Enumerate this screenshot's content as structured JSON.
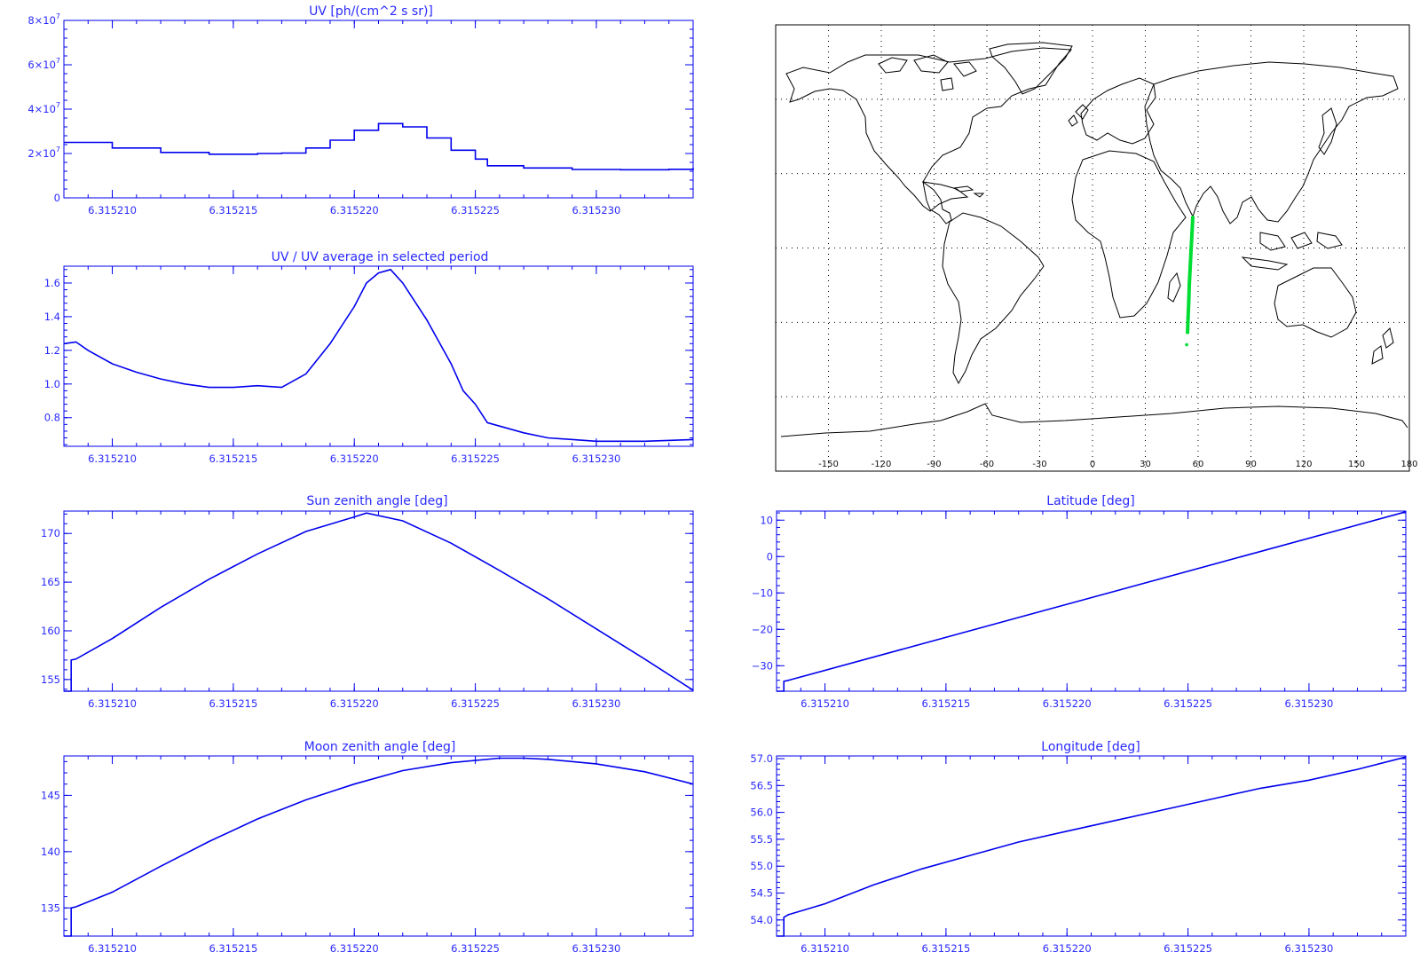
{
  "style": {
    "plot_color": "#0000ee",
    "text_color": "#2a2aff",
    "track_color": "#00dd33",
    "map_color": "#000000"
  },
  "chart_data": [
    {
      "id": "uv",
      "type": "line",
      "title": "UV [ph/(cm^2 s sr)]",
      "xlim": [
        6.315208,
        6.315234
      ],
      "ylim": [
        0,
        80000000
      ],
      "xticks": [
        6.31521,
        6.315215,
        6.31522,
        6.315225,
        6.31523
      ],
      "xtick_labels": [
        "6.315210",
        "6.315215",
        "6.315220",
        "6.315225",
        "6.315230"
      ],
      "yticks": [
        0,
        20000000,
        40000000,
        60000000,
        80000000
      ],
      "ytick_labels": [
        {
          "base": "0",
          "exp": ""
        },
        {
          "base": "2×10",
          "exp": "7"
        },
        {
          "base": "4×10",
          "exp": "7"
        },
        {
          "base": "6×10",
          "exp": "7"
        },
        {
          "base": "8×10",
          "exp": "7"
        }
      ],
      "step": true,
      "series": [
        {
          "x": [
            6.315208,
            6.31521,
            6.315212,
            6.315214,
            6.315216,
            6.315217,
            6.315218,
            6.315219,
            6.31522,
            6.315221,
            6.315222,
            6.315223,
            6.315224,
            6.315225,
            6.3152255,
            6.315227,
            6.315229,
            6.315231,
            6.315233,
            6.315234
          ],
          "y": [
            25000000,
            22500000,
            20500000,
            19700000,
            20000000,
            20200000,
            22500000,
            26000000,
            30500000,
            33500000,
            32000000,
            27000000,
            21500000,
            17500000,
            14500000,
            13500000,
            12800000,
            12700000,
            12900000,
            13500000
          ]
        }
      ]
    },
    {
      "id": "uv-ratio",
      "type": "line",
      "title": "UV / UV average in selected period",
      "xlim": [
        6.315208,
        6.315234
      ],
      "ylim": [
        0.63,
        1.7
      ],
      "xticks": [
        6.31521,
        6.315215,
        6.31522,
        6.315225,
        6.31523
      ],
      "xtick_labels": [
        "6.315210",
        "6.315215",
        "6.315220",
        "6.315225",
        "6.315230"
      ],
      "yticks": [
        0.8,
        1.0,
        1.2,
        1.4,
        1.6
      ],
      "ytick_labels": [
        "0.8",
        "1.0",
        "1.2",
        "1.4",
        "1.6"
      ],
      "series": [
        {
          "x": [
            6.315208,
            6.3152085,
            6.315209,
            6.31521,
            6.315211,
            6.315212,
            6.315213,
            6.315214,
            6.315215,
            6.315216,
            6.315217,
            6.315218,
            6.315219,
            6.31522,
            6.3152205,
            6.315221,
            6.3152215,
            6.315222,
            6.315223,
            6.315224,
            6.3152245,
            6.315225,
            6.3152255,
            6.315226,
            6.315227,
            6.315228,
            6.31523,
            6.315232,
            6.315234
          ],
          "y": [
            1.24,
            1.25,
            1.2,
            1.12,
            1.07,
            1.03,
            1.0,
            0.98,
            0.98,
            0.99,
            0.98,
            1.06,
            1.24,
            1.46,
            1.6,
            1.66,
            1.68,
            1.6,
            1.38,
            1.12,
            0.96,
            0.88,
            0.77,
            0.75,
            0.71,
            0.68,
            0.66,
            0.66,
            0.67
          ]
        }
      ]
    },
    {
      "id": "sun-zenith",
      "type": "line",
      "title": "Sun zenith angle [deg]",
      "xlim": [
        6.315208,
        6.315234
      ],
      "ylim": [
        153.8,
        172.3
      ],
      "xticks": [
        6.31521,
        6.315215,
        6.31522,
        6.315225,
        6.31523
      ],
      "xtick_labels": [
        "6.315210",
        "6.315215",
        "6.315220",
        "6.315225",
        "6.315230"
      ],
      "yticks": [
        155,
        160,
        165,
        170
      ],
      "ytick_labels": [
        "155",
        "160",
        "165",
        "170"
      ],
      "series": [
        {
          "x": [
            6.315208,
            6.3152083,
            6.3152083,
            6.3152085,
            6.31521,
            6.315212,
            6.315214,
            6.315216,
            6.315218,
            6.31522,
            6.3152205,
            6.315222,
            6.315224,
            6.315226,
            6.315228,
            6.31523,
            6.315232,
            6.315234
          ],
          "y": [
            153.8,
            153.8,
            157.0,
            157.1,
            159.2,
            162.4,
            165.3,
            167.9,
            170.2,
            171.7,
            172.1,
            171.3,
            169.0,
            166.2,
            163.3,
            160.2,
            157.1,
            153.9
          ]
        }
      ]
    },
    {
      "id": "latitude",
      "type": "line",
      "title": "Latitude [deg]",
      "xlim": [
        6.315208,
        6.315234
      ],
      "ylim": [
        -37,
        12.5
      ],
      "xticks": [
        6.31521,
        6.315215,
        6.31522,
        6.315225,
        6.31523
      ],
      "xtick_labels": [
        "6.315210",
        "6.315215",
        "6.315220",
        "6.315225",
        "6.315230"
      ],
      "yticks": [
        -30,
        -20,
        -10,
        0,
        10
      ],
      "ytick_labels": [
        "−30",
        "−20",
        "−10",
        "0",
        "10"
      ],
      "series": [
        {
          "x": [
            6.315208,
            6.3152083,
            6.3152083,
            6.3152085,
            6.315234
          ],
          "y": [
            -37,
            -37,
            -34.3,
            -34.0,
            12.3
          ]
        }
      ]
    },
    {
      "id": "moon-zenith",
      "type": "line",
      "title": "Moon zenith angle [deg]",
      "xlim": [
        6.315208,
        6.315234
      ],
      "ylim": [
        132.5,
        148.5
      ],
      "xticks": [
        6.31521,
        6.315215,
        6.31522,
        6.315225,
        6.31523
      ],
      "xtick_labels": [
        "6.315210",
        "6.315215",
        "6.315220",
        "6.315225",
        "6.315230"
      ],
      "yticks": [
        135,
        140,
        145
      ],
      "ytick_labels": [
        "135",
        "140",
        "145"
      ],
      "series": [
        {
          "x": [
            6.315208,
            6.3152083,
            6.3152083,
            6.3152085,
            6.31521,
            6.315212,
            6.315214,
            6.315216,
            6.315218,
            6.31522,
            6.315222,
            6.315224,
            6.315226,
            6.315227,
            6.315228,
            6.31523,
            6.315232,
            6.315234
          ],
          "y": [
            132.5,
            132.5,
            135.0,
            135.1,
            136.4,
            138.7,
            140.9,
            142.9,
            144.6,
            146.0,
            147.2,
            147.9,
            148.3,
            148.3,
            148.2,
            147.8,
            147.1,
            146.0
          ]
        }
      ]
    },
    {
      "id": "longitude",
      "type": "line",
      "title": "Longitude [deg]",
      "xlim": [
        6.315208,
        6.315234
      ],
      "ylim": [
        53.7,
        57.05
      ],
      "xticks": [
        6.31521,
        6.315215,
        6.31522,
        6.315225,
        6.31523
      ],
      "xtick_labels": [
        "6.315210",
        "6.315215",
        "6.315220",
        "6.315225",
        "6.315230"
      ],
      "yticks": [
        54.0,
        54.5,
        55.0,
        55.5,
        56.0,
        56.5,
        57.0
      ],
      "ytick_labels": [
        "54.0",
        "54.5",
        "55.0",
        "55.5",
        "56.0",
        "56.5",
        "57.0"
      ],
      "series": [
        {
          "x": [
            6.315208,
            6.3152083,
            6.3152083,
            6.3152085,
            6.31521,
            6.315212,
            6.315214,
            6.315216,
            6.315218,
            6.31522,
            6.315222,
            6.315224,
            6.315226,
            6.315228,
            6.31523,
            6.315232,
            6.315234
          ],
          "y": [
            53.7,
            53.7,
            54.05,
            54.1,
            54.3,
            54.65,
            54.95,
            55.2,
            55.45,
            55.65,
            55.85,
            56.05,
            56.25,
            56.45,
            56.6,
            56.8,
            57.03
          ]
        }
      ]
    },
    {
      "id": "world-map",
      "type": "scatter",
      "title": "",
      "xlim": [
        -180,
        180
      ],
      "ylim": [
        -90,
        90
      ],
      "xticks": [
        -150,
        -120,
        -90,
        -60,
        -30,
        0,
        30,
        60,
        90,
        120,
        150,
        180
      ],
      "xtick_labels": [
        "-150",
        "-120",
        "-90",
        "-60",
        "-30",
        "0",
        "30",
        "60",
        "90",
        "120",
        "150",
        "180"
      ],
      "grid": true,
      "series": [
        {
          "x": [
            54.0,
            54.3,
            54.7,
            55.0,
            55.5,
            56.0,
            56.5,
            57.0
          ],
          "y": [
            -34.0,
            -28.0,
            -21.0,
            -14.5,
            -7.5,
            -0.5,
            6.0,
            12.3
          ]
        }
      ]
    }
  ]
}
